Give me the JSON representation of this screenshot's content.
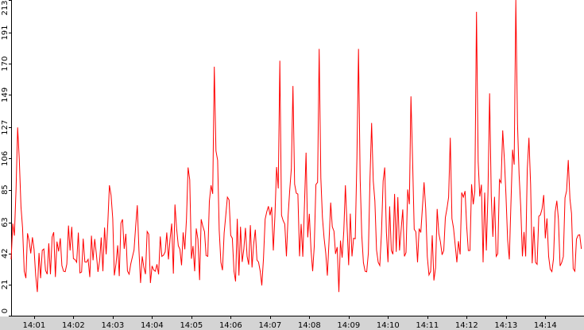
{
  "chart_data": {
    "type": "line",
    "title": "",
    "xlabel": "",
    "ylabel": "",
    "ylim": [
      0,
      213
    ],
    "xlim": [
      "14:00:25",
      "14:14:59"
    ],
    "y_ticks": [
      "0",
      "21",
      "42",
      "63",
      "85",
      "106",
      "127",
      "149",
      "170",
      "191",
      "213"
    ],
    "x_ticks": [
      "14:01",
      "14:02",
      "14:03",
      "14:04",
      "14:05",
      "14:06",
      "14:07",
      "14:08",
      "14:09",
      "14:10",
      "14:11",
      "14:12",
      "14:13",
      "14:14"
    ],
    "x_tick_times": [
      "14:01:00",
      "14:02:00",
      "14:03:00",
      "14:04:00",
      "14:05:00",
      "14:06:00",
      "14:07:00",
      "14:08:00",
      "14:09:00",
      "14:10:00",
      "14:11:00",
      "14:12:00",
      "14:13:00",
      "14:14:00"
    ],
    "grid": false,
    "line_color": "#ff0000",
    "series": [
      {
        "x": [
          "14:00:25",
          "14:00:35",
          "14:00:45",
          "14:00:55",
          "14:01:05",
          "14:01:15",
          "14:01:25",
          "14:01:35",
          "14:01:45",
          "14:01:55",
          "14:02:05",
          "14:02:15",
          "14:02:25",
          "14:02:35",
          "14:02:45",
          "14:02:55",
          "14:03:05",
          "14:03:15",
          "14:03:25",
          "14:03:35",
          "14:03:45",
          "14:03:55",
          "14:04:05",
          "14:04:15",
          "14:04:25",
          "14:04:35",
          "14:04:45",
          "14:04:55",
          "14:05:05",
          "14:05:15",
          "14:05:25",
          "14:05:35",
          "14:05:45",
          "14:05:55",
          "14:06:05",
          "14:06:15",
          "14:06:25",
          "14:06:35",
          "14:06:45",
          "14:06:55",
          "14:07:05",
          "14:07:15",
          "14:07:25",
          "14:07:35",
          "14:07:45",
          "14:07:55",
          "14:08:05",
          "14:08:15",
          "14:08:25",
          "14:08:35",
          "14:08:45",
          "14:08:55",
          "14:09:05",
          "14:09:15",
          "14:09:25",
          "14:09:35",
          "14:09:45",
          "14:09:55",
          "14:10:05",
          "14:10:15",
          "14:10:25",
          "14:10:35",
          "14:10:45",
          "14:10:55",
          "14:11:05",
          "14:11:15",
          "14:11:25",
          "14:11:35",
          "14:11:45",
          "14:11:55",
          "14:12:05",
          "14:12:15",
          "14:12:25",
          "14:12:35",
          "14:12:45",
          "14:12:55",
          "14:13:05",
          "14:13:15",
          "14:13:25",
          "14:13:35",
          "14:13:45",
          "14:13:55",
          "14:14:05",
          "14:14:15",
          "14:14:25",
          "14:14:35",
          "14:14:45",
          "14:14:55"
        ],
        "values": [
          38,
          127,
          30,
          42,
          16,
          45,
          28,
          50,
          30,
          44,
          36,
          52,
          26,
          42,
          30,
          88,
          35,
          65,
          28,
          60,
          40,
          55,
          30,
          40,
          38,
          75,
          34,
          100,
          30,
          65,
          40,
          168,
          36,
          80,
          30,
          60,
          40,
          48,
          30,
          70,
          44,
          172,
          40,
          155,
          40,
          110,
          30,
          180,
          42,
          60,
          16,
          88,
          40,
          180,
          30,
          130,
          36,
          100,
          44,
          80,
          40,
          148,
          36,
          90,
          30,
          72,
          44,
          120,
          36,
          80,
          44,
          205,
          36,
          150,
          40,
          125,
          38,
          213,
          40,
          120,
          36,
          72,
          40,
          70,
          36,
          105,
          30,
          45
        ]
      }
    ]
  }
}
